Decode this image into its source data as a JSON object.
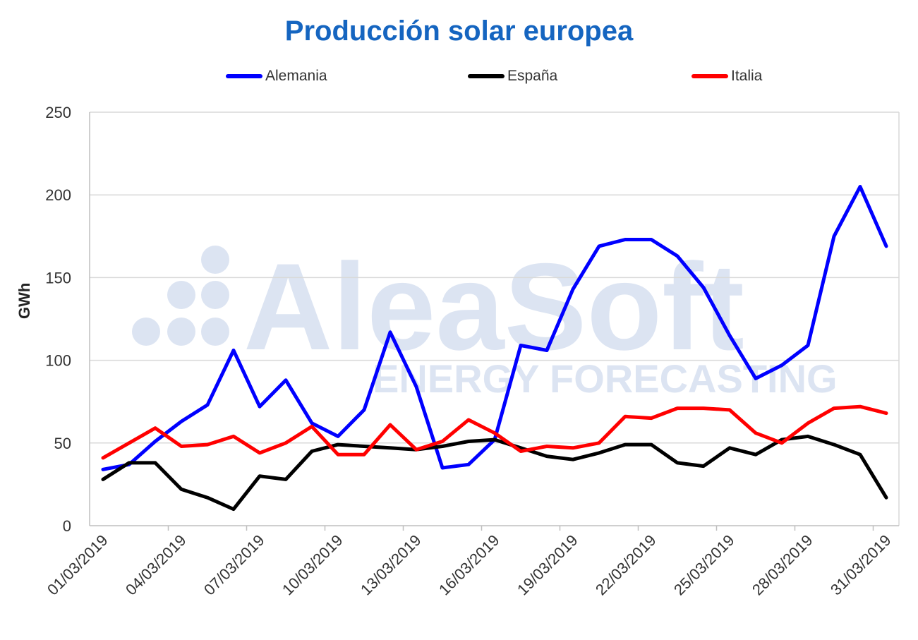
{
  "chart_data": {
    "type": "line",
    "title": "Producción solar europea",
    "xlabel": "",
    "ylabel": "GWh",
    "ylim": [
      0,
      250
    ],
    "yticks": [
      0,
      50,
      100,
      150,
      200,
      250
    ],
    "x": [
      "01/03/2019",
      "02/03/2019",
      "03/03/2019",
      "04/03/2019",
      "05/03/2019",
      "06/03/2019",
      "07/03/2019",
      "08/03/2019",
      "09/03/2019",
      "10/03/2019",
      "11/03/2019",
      "12/03/2019",
      "13/03/2019",
      "14/03/2019",
      "15/03/2019",
      "16/03/2019",
      "17/03/2019",
      "18/03/2019",
      "19/03/2019",
      "20/03/2019",
      "21/03/2019",
      "22/03/2019",
      "23/03/2019",
      "24/03/2019",
      "25/03/2019",
      "26/03/2019",
      "27/03/2019",
      "28/03/2019",
      "29/03/2019",
      "30/03/2019",
      "31/03/2019"
    ],
    "xtick_labels": [
      "01/03/2019",
      "04/03/2019",
      "07/03/2019",
      "10/03/2019",
      "13/03/2019",
      "16/03/2019",
      "19/03/2019",
      "22/03/2019",
      "25/03/2019",
      "28/03/2019",
      "31/03/2019"
    ],
    "grid": true,
    "legend_position": "top",
    "series": [
      {
        "name": "Alemania",
        "color": "#0000FF",
        "values": [
          34,
          37,
          51,
          63,
          73,
          106,
          72,
          88,
          62,
          54,
          70,
          117,
          84,
          35,
          37,
          52,
          109,
          106,
          143,
          169,
          173,
          173,
          163,
          144,
          115,
          89,
          97,
          109,
          175,
          205,
          169
        ]
      },
      {
        "name": "España",
        "color": "#000000",
        "values": [
          28,
          38,
          38,
          22,
          17,
          10,
          30,
          28,
          45,
          49,
          48,
          47,
          46,
          48,
          51,
          52,
          47,
          42,
          40,
          44,
          49,
          49,
          38,
          36,
          47,
          43,
          52,
          54,
          49,
          43,
          17
        ]
      },
      {
        "name": "Italia",
        "color": "#FF0000",
        "values": [
          41,
          50,
          59,
          48,
          49,
          54,
          44,
          50,
          60,
          43,
          43,
          61,
          46,
          51,
          64,
          56,
          45,
          48,
          47,
          50,
          66,
          65,
          71,
          71,
          70,
          56,
          50,
          62,
          71,
          72,
          68
        ]
      }
    ]
  },
  "watermark": {
    "brand": "AleaSoft",
    "tagline": "ENERGY FORECASTING",
    "color": "#DCE4F2"
  }
}
